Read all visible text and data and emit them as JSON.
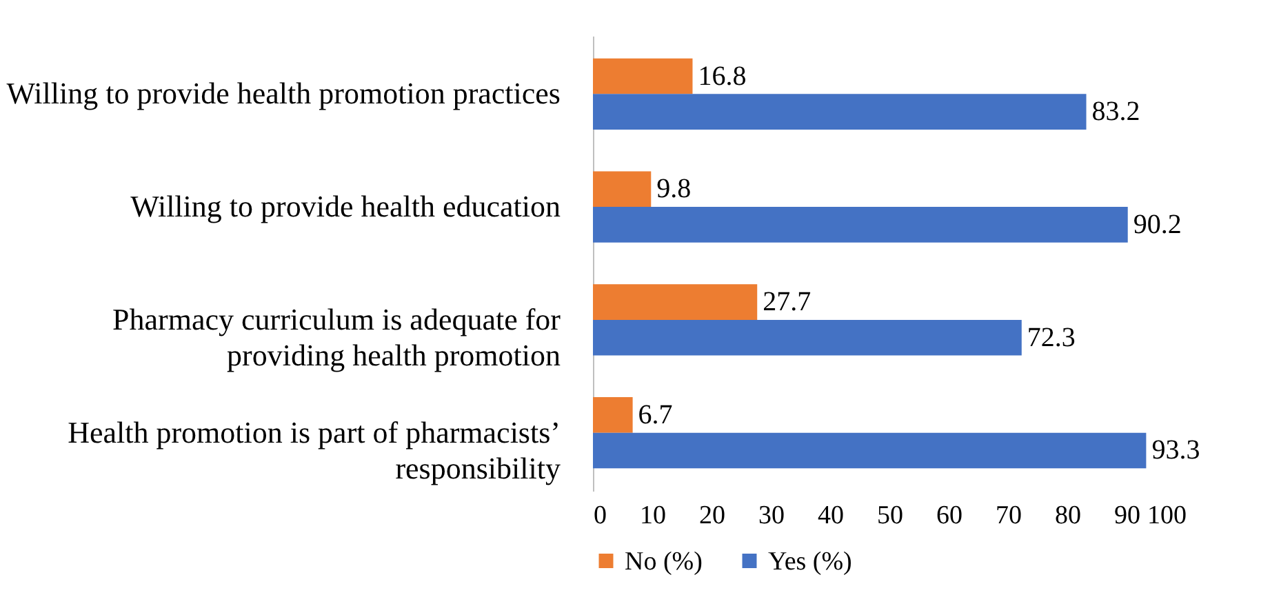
{
  "chart_data": {
    "type": "bar",
    "orientation": "horizontal",
    "categories": [
      "Willing to provide health promotion practices",
      "Willing to provide health education",
      "Pharmacy curriculum is adequate for providing health promotion",
      "Health promotion is part of pharmacists’ responsibility"
    ],
    "series": [
      {
        "name": "No (%)",
        "color": "#ed7d31",
        "values": [
          16.8,
          9.8,
          27.7,
          6.7
        ]
      },
      {
        "name": "Yes (%)",
        "color": "#4472c4",
        "values": [
          83.2,
          90.2,
          72.3,
          93.3
        ]
      }
    ],
    "xlim": [
      0,
      100
    ],
    "xticks": [
      0,
      10,
      20,
      30,
      40,
      50,
      60,
      70,
      80,
      90,
      100
    ],
    "grid": false,
    "legend": "bottom",
    "data_labels": true
  }
}
